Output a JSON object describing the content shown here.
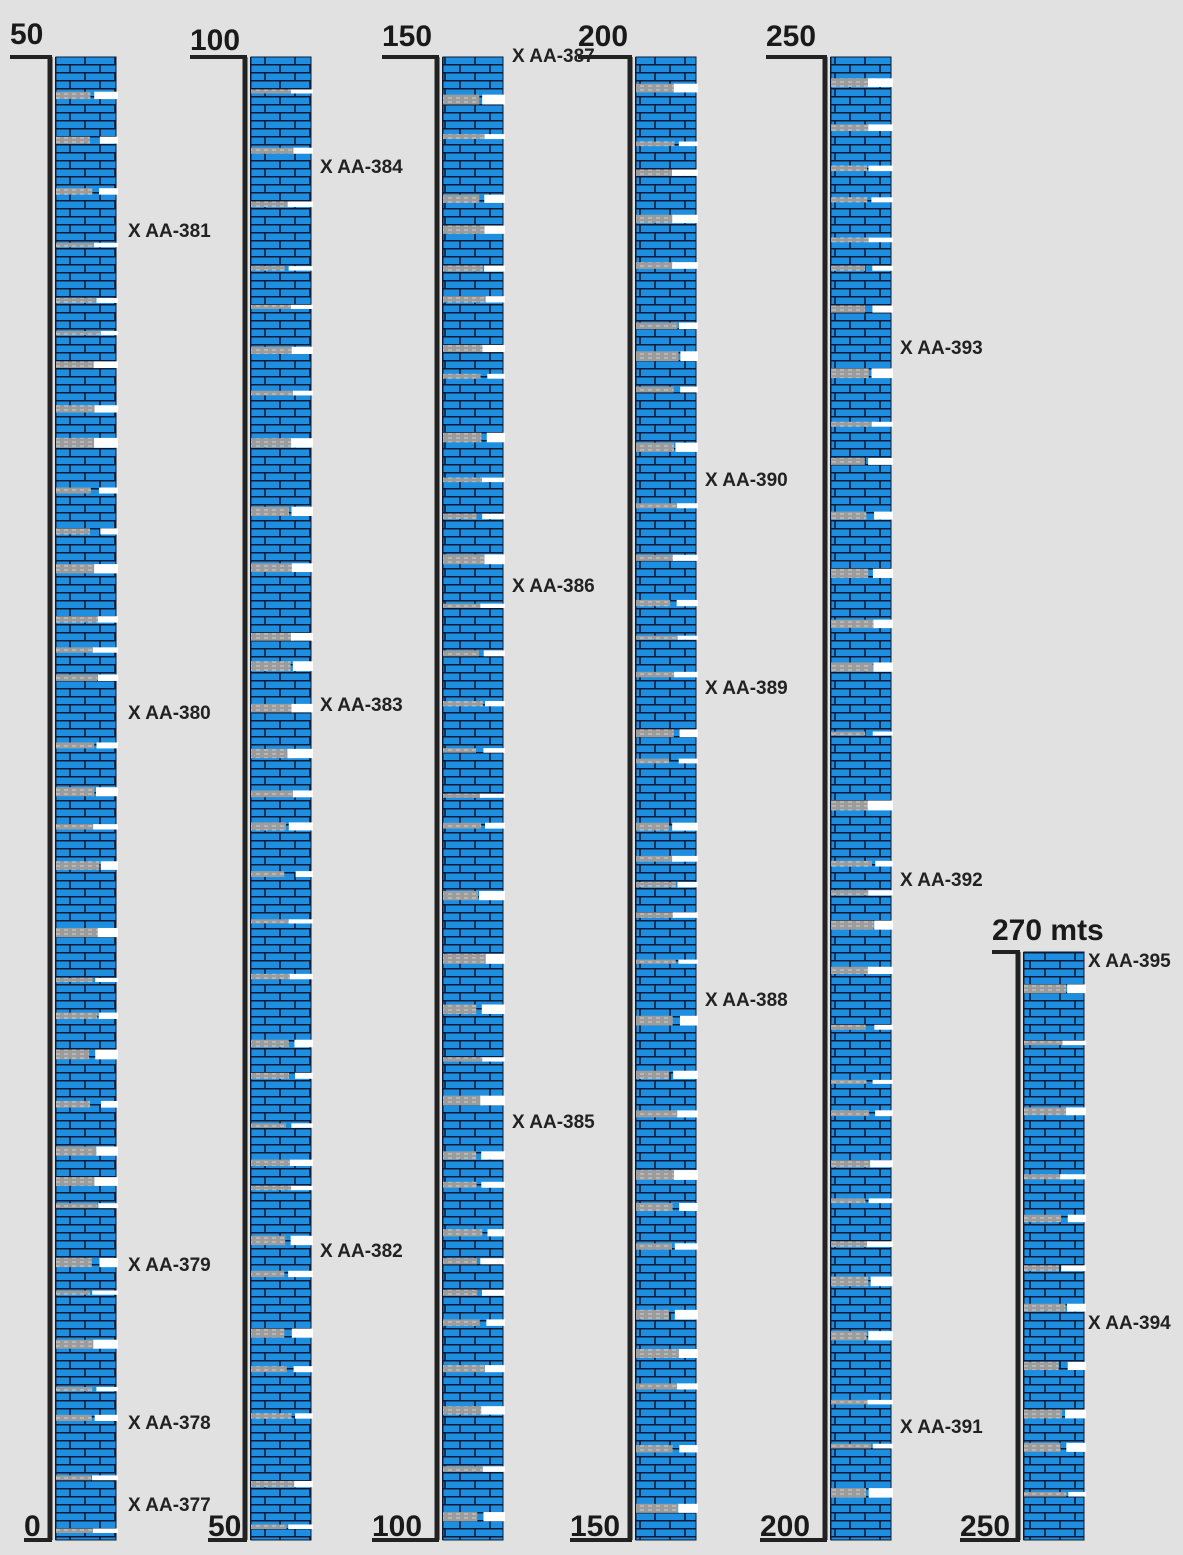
{
  "columns": [
    {
      "top": "50",
      "bottom": "0",
      "samples": [
        "X AA-381",
        "X AA-380",
        "X AA-379",
        "X AA-378",
        "X AA-377"
      ]
    },
    {
      "top": "100",
      "bottom": "50",
      "samples": [
        "X AA-384",
        "X AA-383",
        "X AA-382"
      ]
    },
    {
      "top": "150",
      "bottom": "100",
      "samples": [
        "X AA-387",
        "X AA-386",
        "X AA-385"
      ]
    },
    {
      "top": "200",
      "bottom": "150",
      "samples": [
        "X AA-390",
        "X AA-389",
        "X AA-388"
      ]
    },
    {
      "top": "250",
      "bottom": "200",
      "samples": [
        "X AA-393",
        "X AA-392",
        "X AA-391"
      ]
    },
    {
      "top": "270 mts",
      "bottom": "250",
      "samples": [
        "X AA-395",
        "X AA-394"
      ]
    }
  ]
}
